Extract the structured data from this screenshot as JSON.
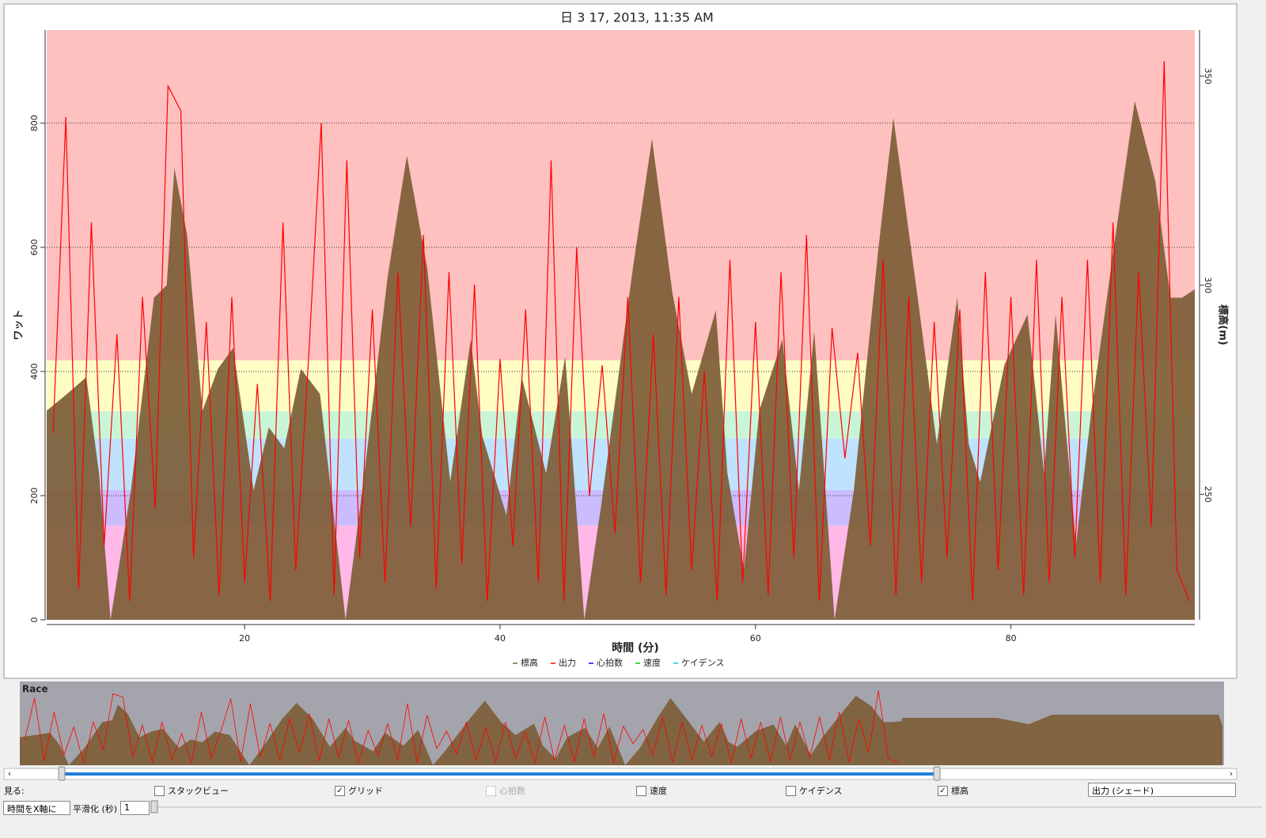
{
  "chart_data": {
    "type": "line",
    "title": "日 3 17, 2013, 11:35 AM",
    "x_label": "時間 (分)",
    "y_label": "ワット",
    "y2_label": "標高(m)",
    "xlim": [
      4.5,
      94.4
    ],
    "xticks": [
      20,
      40,
      60,
      80
    ],
    "ylim": [
      0,
      950
    ],
    "yticks": [
      0,
      200,
      400,
      600,
      800
    ],
    "y2lim": [
      220,
      361
    ],
    "y2ticks": [
      250,
      300,
      350
    ],
    "grid": true,
    "zone_bounds": [
      0,
      152,
      209,
      292,
      336,
      418
    ],
    "zone_colors": [
      "#ffb8e8",
      "#cbbcff",
      "#bfe2ff",
      "#c8f5d8",
      "#fffcc4",
      "#ffc0c0"
    ],
    "series": [
      {
        "name": "標高",
        "color": "#7d5d36",
        "axis": "y2",
        "x": [
          4.5,
          6.1,
          7.6,
          8.6,
          9.5,
          11.1,
          12.9,
          13.9,
          14.5,
          15.5,
          16.7,
          17.9,
          19.1,
          20.7,
          21.9,
          23.1,
          24.4,
          25.9,
          27.9,
          29.3,
          31.2,
          32.7,
          34.3,
          36.1,
          37.7,
          38.6,
          40.5,
          41.7,
          43.6,
          45.1,
          46.6,
          47.9,
          50.4,
          51.9,
          53.5,
          55.0,
          56.9,
          57.8,
          59.1,
          60.3,
          62.1,
          63.4,
          64.6,
          66.2,
          67.7,
          69.6,
          70.8,
          72.7,
          74.2,
          75.8,
          76.7,
          77.6,
          79.5,
          81.3,
          82.6,
          83.5,
          85.1,
          86.3,
          88.2,
          89.7,
          91.3,
          92.5,
          93.4,
          94.4
        ],
        "values": [
          270,
          274,
          278,
          255,
          220,
          251,
          297,
          300,
          328,
          312,
          270,
          280,
          285,
          251,
          266,
          261,
          280,
          274,
          220,
          253,
          302,
          331,
          304,
          253,
          287,
          264,
          245,
          278,
          255,
          283,
          220,
          247,
          304,
          335,
          298,
          274,
          294,
          255,
          232,
          270,
          287,
          251,
          289,
          220,
          251,
          308,
          340,
          297,
          262,
          297,
          262,
          253,
          281,
          293,
          255,
          293,
          238,
          270,
          312,
          344,
          325,
          297,
          297,
          299
        ]
      },
      {
        "name": "出力",
        "color": "#ff0000",
        "x": [
          5,
          6,
          7,
          8,
          9,
          10,
          11,
          12,
          13,
          14,
          15,
          16,
          17,
          18,
          19,
          20,
          21,
          22,
          23,
          24,
          25,
          26,
          27,
          28,
          29,
          30,
          31,
          32,
          33,
          34,
          35,
          36,
          37,
          38,
          39,
          40,
          41,
          42,
          43,
          44,
          45,
          46,
          47,
          48,
          49,
          50,
          51,
          52,
          53,
          54,
          55,
          56,
          57,
          58,
          59,
          60,
          61,
          62,
          63,
          64,
          65,
          66,
          67,
          68,
          69,
          70,
          71,
          72,
          73,
          74,
          75,
          76,
          77,
          78,
          79,
          80,
          81,
          82,
          83,
          84,
          85,
          86,
          87,
          88,
          89,
          90,
          91,
          92,
          93,
          94
        ],
        "values": [
          300,
          810,
          50,
          640,
          120,
          460,
          30,
          520,
          180,
          860,
          820,
          100,
          480,
          40,
          520,
          60,
          380,
          30,
          640,
          80,
          420,
          800,
          40,
          740,
          100,
          500,
          60,
          560,
          150,
          620,
          50,
          560,
          90,
          540,
          30,
          420,
          120,
          500,
          60,
          740,
          30,
          600,
          200,
          410,
          140,
          520,
          60,
          460,
          40,
          520,
          80,
          400,
          30,
          580,
          60,
          480,
          40,
          560,
          100,
          620,
          30,
          470,
          260,
          430,
          120,
          580,
          40,
          520,
          60,
          480,
          100,
          500,
          30,
          560,
          80,
          520,
          40,
          580,
          60,
          520,
          100,
          580,
          60,
          640,
          40,
          560,
          150,
          900,
          80,
          30
        ]
      }
    ],
    "other_legend": [
      {
        "name": "心拍数",
        "color": "#0000ff"
      },
      {
        "name": "速度",
        "color": "#00cc00"
      },
      {
        "name": "ケイデンス",
        "color": "#00cccc"
      }
    ]
  },
  "overview": {
    "label": "Race"
  },
  "controls": {
    "view_label": "見る:",
    "checkboxes": [
      {
        "label": "スタックビュー",
        "checked": false,
        "disabled": false
      },
      {
        "label": "グリッド",
        "checked": true,
        "disabled": false
      },
      {
        "label": "心拍数",
        "checked": false,
        "disabled": true
      },
      {
        "label": "速度",
        "checked": false,
        "disabled": false
      },
      {
        "label": "ケイデンス",
        "checked": false,
        "disabled": false
      },
      {
        "label": "標高",
        "checked": true,
        "disabled": false
      }
    ],
    "shade_select": "出力 (シェード)",
    "xaxis_select": "時間をX軸に",
    "smoothing_label": "平滑化 (秒)",
    "smoothing_value": "1"
  }
}
